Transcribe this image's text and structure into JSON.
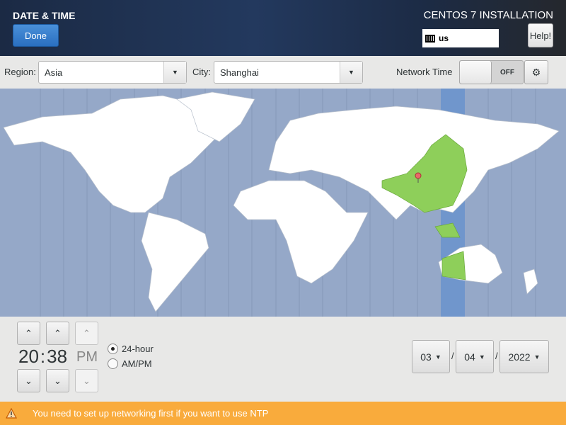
{
  "header": {
    "title": "DATE & TIME",
    "done_label": "Done",
    "product": "CENTOS 7 INSTALLATION",
    "keyboard_layout": "us",
    "help_label": "Help!"
  },
  "toolbar": {
    "region_label": "Region:",
    "region_value": "Asia",
    "city_label": "City:",
    "city_value": "Shanghai",
    "network_time_label": "Network Time",
    "network_time_state": "OFF",
    "network_time_on": false
  },
  "map": {
    "selected_timezone": "Asia/Shanghai",
    "colors": {
      "ocean": "#95a8c8",
      "highlight_band": "#7096cc",
      "selected_country": "#8ecf5a",
      "land": "#ffffff"
    }
  },
  "time": {
    "hours": "20",
    "separator": ":",
    "minutes": "38",
    "ampm": "PM",
    "format_options": [
      {
        "label": "24-hour",
        "selected": true
      },
      {
        "label": "AM/PM",
        "selected": false
      }
    ]
  },
  "date": {
    "month": "03",
    "day": "04",
    "year": "2022",
    "separator": "/"
  },
  "warning": {
    "text": "You need to set up networking first if you want to use NTP",
    "color": "#f9ab3c"
  }
}
